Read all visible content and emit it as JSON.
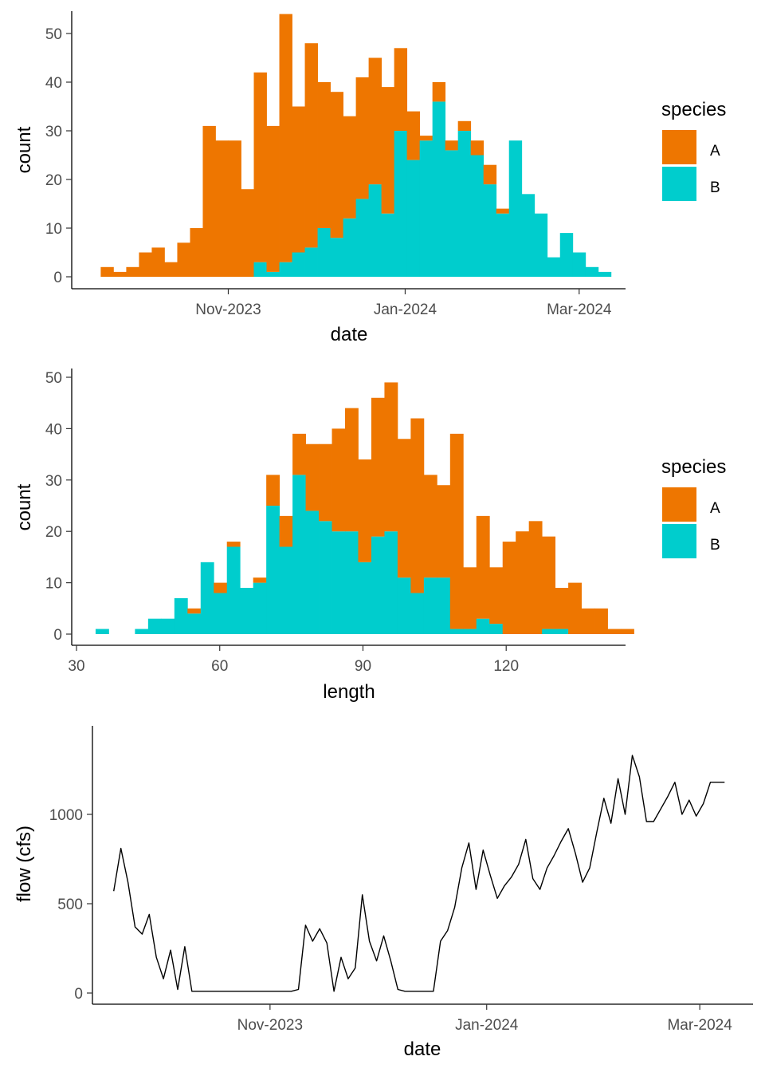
{
  "colors": {
    "A": "#ee7600",
    "B": "#00cdcd",
    "line": "#000000"
  },
  "chart_data": [
    {
      "type": "bar",
      "stacked": true,
      "xlabel": "date",
      "ylabel": "count",
      "x_tick_labels": [
        "Nov-2023",
        "Jan-2024",
        "Mar-2024"
      ],
      "x_tick_values": [
        "2023-11-01",
        "2024-01-01",
        "2024-03-01"
      ],
      "ylim": [
        0,
        52
      ],
      "y_ticks": [
        0,
        10,
        20,
        30,
        40,
        50
      ],
      "legend": {
        "title": "species",
        "position": "right",
        "labels": [
          "A",
          "B"
        ]
      },
      "bin_start": "2023-09-18",
      "bin_width_days": 4.4,
      "series": [
        {
          "name": "A",
          "values": [
            2,
            1,
            2,
            5,
            6,
            3,
            7,
            10,
            31,
            28,
            28,
            18,
            39,
            30,
            51,
            30,
            42,
            30,
            30,
            21,
            25,
            26,
            26,
            17,
            10,
            1,
            4,
            2,
            2,
            3,
            4,
            1,
            0,
            0,
            0,
            0,
            0,
            0,
            0,
            0,
            0,
            0,
            0,
            0,
            0
          ]
        },
        {
          "name": "B",
          "values": [
            0,
            0,
            0,
            0,
            0,
            0,
            0,
            0,
            0,
            0,
            0,
            0,
            3,
            1,
            3,
            5,
            6,
            10,
            8,
            12,
            16,
            19,
            13,
            30,
            24,
            28,
            36,
            26,
            30,
            25,
            19,
            13,
            28,
            17,
            13,
            4,
            9,
            5,
            2,
            1,
            0,
            0,
            0,
            0,
            0
          ]
        }
      ]
    },
    {
      "type": "bar",
      "stacked": true,
      "xlabel": "length",
      "ylabel": "count",
      "x_ticks": [
        30,
        60,
        90,
        120
      ],
      "xlim": [
        29,
        145
      ],
      "ylim": [
        0,
        51
      ],
      "y_ticks": [
        0,
        10,
        20,
        30,
        40,
        50
      ],
      "legend": {
        "title": "species",
        "position": "right",
        "labels": [
          "A",
          "B"
        ]
      },
      "bin_start": 34.0,
      "bin_width": 2.75,
      "series": [
        {
          "name": "A",
          "values": [
            0,
            0,
            0,
            0,
            0,
            0,
            0,
            1,
            0,
            2,
            1,
            0,
            1,
            6,
            6,
            8,
            13,
            15,
            20,
            24,
            20,
            27,
            29,
            27,
            34,
            20,
            18,
            38,
            12,
            20,
            11,
            18,
            20,
            22,
            18,
            8,
            10,
            5,
            5,
            1,
            1,
            0,
            0
          ]
        },
        {
          "name": "B",
          "values": [
            1,
            0,
            0,
            1,
            3,
            3,
            7,
            4,
            14,
            8,
            17,
            9,
            10,
            25,
            17,
            31,
            24,
            22,
            20,
            20,
            14,
            19,
            20,
            11,
            8,
            11,
            11,
            1,
            1,
            3,
            2,
            0,
            0,
            0,
            1,
            1,
            0,
            0,
            0,
            0,
            0,
            0,
            0
          ]
        }
      ]
    },
    {
      "type": "line",
      "xlabel": "date",
      "ylabel": "flow (cfs)",
      "x_tick_labels": [
        "Nov-2023",
        "Jan-2024",
        "Mar-2024"
      ],
      "x_tick_values": [
        "2023-11-01",
        "2024-01-01",
        "2024-03-01"
      ],
      "ylim": [
        -30,
        1390
      ],
      "y_ticks": [
        0,
        500,
        1000
      ],
      "series": [
        {
          "dates": [
            "2023-09-18",
            "2023-09-20",
            "2023-09-22",
            "2023-09-24",
            "2023-09-26",
            "2023-09-28",
            "2023-09-30",
            "2023-10-02",
            "2023-10-04",
            "2023-10-06",
            "2023-10-08",
            "2023-10-10",
            "2023-10-12",
            "2023-10-14",
            "2023-10-16",
            "2023-10-18",
            "2023-10-20",
            "2023-10-22",
            "2023-10-24",
            "2023-10-26",
            "2023-10-28",
            "2023-10-30",
            "2023-11-01",
            "2023-11-03",
            "2023-11-05",
            "2023-11-07",
            "2023-11-09",
            "2023-11-11",
            "2023-11-13",
            "2023-11-15",
            "2023-11-17",
            "2023-11-19",
            "2023-11-21",
            "2023-11-23",
            "2023-11-25",
            "2023-11-27",
            "2023-11-29",
            "2023-12-01",
            "2023-12-03",
            "2023-12-05",
            "2023-12-07",
            "2023-12-09",
            "2023-12-11",
            "2023-12-13",
            "2023-12-15",
            "2023-12-17",
            "2023-12-19",
            "2023-12-21",
            "2023-12-23",
            "2023-12-25",
            "2023-12-27",
            "2023-12-29",
            "2023-12-31",
            "2024-01-02",
            "2024-01-04",
            "2024-01-06",
            "2024-01-08",
            "2024-01-10",
            "2024-01-12",
            "2024-01-14",
            "2024-01-16",
            "2024-01-18",
            "2024-01-20",
            "2024-01-22",
            "2024-01-24",
            "2024-01-26",
            "2024-01-28",
            "2024-01-30",
            "2024-02-01",
            "2024-02-03",
            "2024-02-05",
            "2024-02-07",
            "2024-02-09",
            "2024-02-11",
            "2024-02-13",
            "2024-02-15",
            "2024-02-17",
            "2024-02-19",
            "2024-02-21",
            "2024-02-23",
            "2024-02-25",
            "2024-02-27",
            "2024-02-29",
            "2024-03-02",
            "2024-03-04",
            "2024-03-06",
            "2024-03-08"
          ],
          "values": [
            570,
            810,
            620,
            370,
            330,
            440,
            200,
            80,
            240,
            20,
            260,
            10,
            10,
            10,
            10,
            10,
            10,
            10,
            10,
            10,
            10,
            10,
            10,
            10,
            10,
            10,
            20,
            380,
            290,
            360,
            280,
            10,
            200,
            80,
            140,
            550,
            290,
            180,
            320,
            180,
            20,
            10,
            10,
            10,
            10,
            10,
            290,
            350,
            480,
            700,
            840,
            580,
            800,
            660,
            530,
            600,
            650,
            720,
            860,
            640,
            580,
            700,
            770,
            850,
            920,
            780,
            620,
            700,
            900,
            1090,
            950,
            1200,
            1000,
            1330,
            1210,
            960,
            960,
            1030,
            1100,
            1180,
            1000,
            1080,
            990,
            1060,
            1180,
            1180,
            1180
          ]
        }
      ]
    }
  ]
}
